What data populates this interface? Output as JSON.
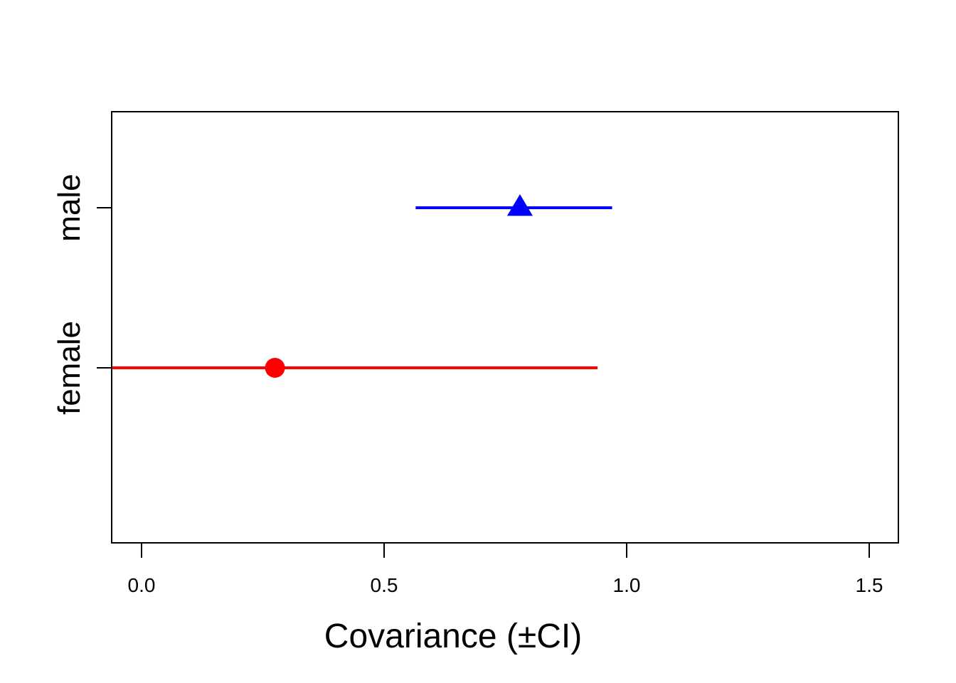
{
  "chart_data": {
    "type": "scatter",
    "title": "",
    "xlabel": "Covariance (±CI)",
    "ylabel": "",
    "xlim": [
      -0.06,
      1.56
    ],
    "x_ticks": [
      0.0,
      0.5,
      1.0,
      1.5
    ],
    "x_tick_labels": [
      "0.0",
      "0.5",
      "1.0",
      "1.5"
    ],
    "categories": [
      "male",
      "female"
    ],
    "grid": false,
    "series": [
      {
        "category": "male",
        "estimate": 0.78,
        "ci_low": 0.565,
        "ci_high": 0.97,
        "marker": "triangle",
        "color": "#0000ff"
      },
      {
        "category": "female",
        "estimate": 0.275,
        "ci_low": -0.06,
        "ci_high": 0.94,
        "marker": "circle",
        "color": "#ff0000"
      }
    ]
  }
}
